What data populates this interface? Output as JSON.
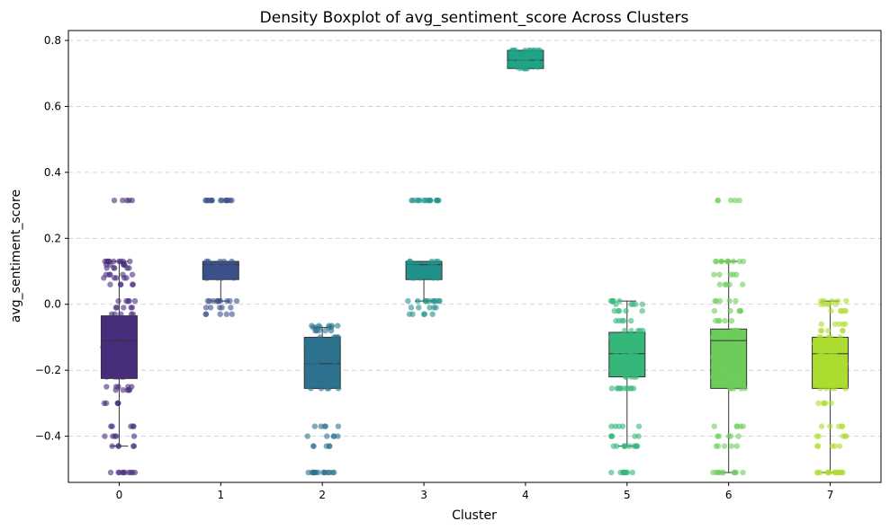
{
  "chart_data": {
    "type": "boxplot",
    "title": "Density Boxplot of avg_sentiment_score Across Clusters",
    "xlabel": "Cluster",
    "ylabel": "avg_sentiment_score",
    "categories": [
      "0",
      "1",
      "2",
      "3",
      "4",
      "5",
      "6",
      "7"
    ],
    "ylim": [
      -0.54,
      0.83
    ],
    "yticks": [
      -0.4,
      -0.2,
      0.0,
      0.2,
      0.4,
      0.6,
      0.8
    ],
    "ytick_labels": [
      "−0.4",
      "−0.2",
      "0.0",
      "0.2",
      "0.4",
      "0.6",
      "0.8"
    ],
    "grid": "y-dashed",
    "boxes": [
      {
        "cluster": "0",
        "whislo": -0.43,
        "q1": -0.225,
        "median": -0.11,
        "q3": -0.035,
        "whishi": 0.13,
        "color": "#472d7b",
        "points": [
          0.315,
          0.13,
          0.13,
          0.12,
          0.09,
          0.08,
          0.11,
          0.06,
          0.01,
          -0.01,
          -0.03,
          -0.05,
          -0.08,
          -0.1,
          -0.13,
          -0.16,
          -0.19,
          -0.22,
          -0.25,
          -0.26,
          -0.3,
          -0.37,
          -0.4,
          -0.43,
          -0.51,
          -0.51
        ]
      },
      {
        "cluster": "1",
        "whislo": 0.01,
        "q1": 0.075,
        "median": 0.12,
        "q3": 0.13,
        "whishi": 0.13,
        "color": "#3b518b",
        "points": [
          0.315,
          0.315,
          0.315,
          0.13,
          0.12,
          0.1,
          0.09,
          0.08,
          0.01,
          0.01,
          -0.01,
          -0.03
        ]
      },
      {
        "cluster": "2",
        "whislo": -0.255,
        "q1": -0.255,
        "median": -0.18,
        "q3": -0.1,
        "whishi": -0.07,
        "color": "#2c718e",
        "points": [
          -0.065,
          -0.07,
          -0.08,
          -0.1,
          -0.12,
          -0.15,
          -0.18,
          -0.2,
          -0.23,
          -0.255,
          -0.37,
          -0.4,
          -0.43,
          -0.51,
          -0.51,
          -0.51
        ]
      },
      {
        "cluster": "3",
        "whislo": 0.01,
        "q1": 0.075,
        "median": 0.12,
        "q3": 0.13,
        "whishi": 0.13,
        "color": "#21918c",
        "points": [
          0.315,
          0.315,
          0.315,
          0.13,
          0.12,
          0.1,
          0.09,
          0.08,
          0.01,
          0.01,
          -0.01,
          -0.03
        ]
      },
      {
        "cluster": "4",
        "whislo": 0.715,
        "q1": 0.715,
        "median": 0.74,
        "q3": 0.77,
        "whishi": 0.77,
        "color": "#20a386",
        "points": [
          0.77,
          0.77,
          0.76,
          0.74,
          0.73,
          0.72,
          0.715
        ]
      },
      {
        "cluster": "5",
        "whislo": -0.43,
        "q1": -0.22,
        "median": -0.15,
        "q3": -0.085,
        "whishi": 0.01,
        "color": "#35b779",
        "points": [
          0.01,
          0.0,
          -0.02,
          -0.05,
          -0.08,
          -0.1,
          -0.13,
          -0.15,
          -0.18,
          -0.2,
          -0.22,
          -0.255,
          -0.255,
          -0.37,
          -0.4,
          -0.43,
          -0.43,
          -0.51,
          -0.51
        ]
      },
      {
        "cluster": "6",
        "whislo": -0.51,
        "q1": -0.255,
        "median": -0.11,
        "q3": -0.075,
        "whishi": 0.13,
        "color": "#6ccd5a",
        "points": [
          0.315,
          0.13,
          0.13,
          0.09,
          0.06,
          0.01,
          -0.02,
          -0.05,
          -0.08,
          -0.1,
          -0.13,
          -0.16,
          -0.19,
          -0.22,
          -0.255,
          -0.37,
          -0.4,
          -0.43,
          -0.51,
          -0.51
        ]
      },
      {
        "cluster": "7",
        "whislo": -0.51,
        "q1": -0.255,
        "median": -0.15,
        "q3": -0.1,
        "whishi": 0.01,
        "color": "#addc30",
        "points": [
          0.01,
          0.0,
          -0.02,
          -0.06,
          -0.08,
          -0.1,
          -0.12,
          -0.15,
          -0.18,
          -0.2,
          -0.23,
          -0.255,
          -0.3,
          -0.37,
          -0.4,
          -0.43,
          -0.51,
          -0.51,
          -0.51
        ]
      }
    ]
  }
}
